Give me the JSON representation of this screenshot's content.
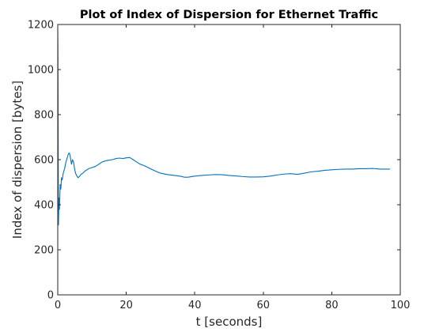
{
  "chart_data": {
    "type": "line",
    "title": "Plot of Index of Dispersion for Ethernet Traffic",
    "xlabel": "t [seconds]",
    "ylabel": "Index of dispersion [bytes]",
    "xlim": [
      0,
      100
    ],
    "ylim": [
      0,
      1200
    ],
    "xticks": [
      0,
      20,
      40,
      60,
      80,
      100
    ],
    "yticks": [
      0,
      200,
      400,
      600,
      800,
      1000,
      1200
    ],
    "grid": false,
    "legend": "none",
    "box": true,
    "series": [
      {
        "color": "#0072bd",
        "x": [
          0.0,
          0.05,
          0.1,
          0.2,
          0.35,
          0.5,
          0.7,
          0.9,
          1.1,
          1.3,
          1.6,
          2.0,
          2.4,
          2.8,
          3.1,
          3.4,
          3.7,
          4.0,
          4.3,
          4.6,
          4.9,
          5.2,
          5.5,
          5.9,
          6.3,
          6.8,
          7.3,
          8.0,
          9.0,
          10.0,
          11.0,
          12.0,
          13.0,
          14.0,
          15.0,
          16.0,
          17.0,
          18.0,
          19.0,
          20.0,
          21.0,
          22.0,
          23.0,
          24.0,
          25.0,
          26.0,
          27.0,
          28.0,
          29.0,
          30.0,
          32.0,
          34.0,
          36.0,
          37.0,
          38.0,
          40.0,
          42.0,
          44.0,
          46.0,
          48.0,
          50.0,
          52.0,
          54.0,
          56.0,
          58.0,
          60.0,
          62.0,
          64.0,
          66.0,
          68.0,
          70.0,
          72.0,
          74.0,
          76.0,
          78.0,
          80.0,
          82.0,
          84.0,
          86.0,
          88.0,
          90.0,
          92.0,
          94.0,
          97.0
        ],
        "y": [
          1180,
          1100,
          900,
          310,
          430,
          380,
          490,
          470,
          520,
          510,
          540,
          560,
          590,
          610,
          625,
          630,
          610,
          580,
          600,
          590,
          560,
          540,
          530,
          520,
          525,
          535,
          540,
          550,
          560,
          565,
          570,
          580,
          590,
          595,
          598,
          600,
          605,
          607,
          605,
          608,
          610,
          600,
          590,
          580,
          575,
          568,
          560,
          553,
          546,
          540,
          534,
          530,
          526,
          522,
          522,
          527,
          530,
          532,
          534,
          533,
          530,
          528,
          525,
          523,
          523,
          524,
          527,
          532,
          536,
          538,
          535,
          540,
          546,
          549,
          553,
          555,
          557,
          558,
          558,
          560,
          560,
          561,
          558,
          558
        ]
      }
    ]
  }
}
